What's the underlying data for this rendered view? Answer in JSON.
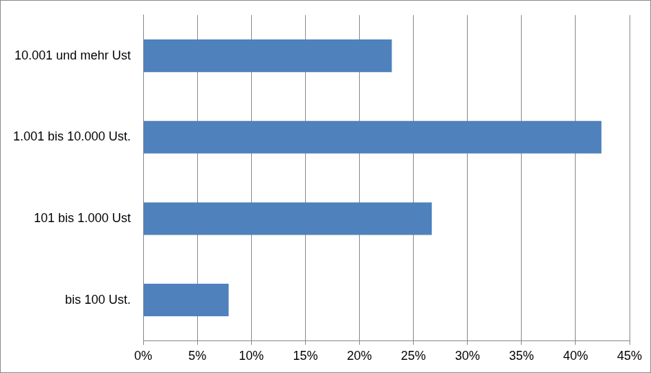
{
  "chart_data": {
    "type": "bar",
    "orientation": "horizontal",
    "categories": [
      "10.001 und mehr Ust",
      "1.001 bis 10.000 Ust.",
      "101 bis 1.000 Ust",
      "bis 100 Ust."
    ],
    "values": [
      23.0,
      42.4,
      26.7,
      7.9
    ],
    "color": "#4f81bd",
    "xlim": [
      0,
      45
    ],
    "xticks": [
      {
        "value": 0,
        "label": "0%"
      },
      {
        "value": 5,
        "label": "5%"
      },
      {
        "value": 10,
        "label": "10%"
      },
      {
        "value": 15,
        "label": "15%"
      },
      {
        "value": 20,
        "label": "20%"
      },
      {
        "value": 25,
        "label": "25%"
      },
      {
        "value": 30,
        "label": "30%"
      },
      {
        "value": 35,
        "label": "35%"
      },
      {
        "value": 40,
        "label": "40%"
      },
      {
        "value": 45,
        "label": "45%"
      }
    ],
    "grid": true
  }
}
